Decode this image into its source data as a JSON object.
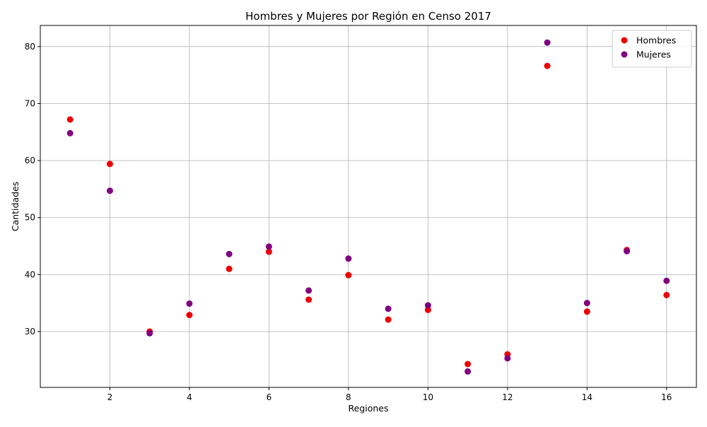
{
  "chart_data": {
    "type": "scatter",
    "title": "Hombres y Mujeres por Región en Censo 2017",
    "xlabel": "Regiones",
    "ylabel": "Cantidades",
    "xlim": [
      0.25,
      16.75
    ],
    "ylim": [
      20.2,
      83.7
    ],
    "x_ticks": [
      2,
      4,
      6,
      8,
      10,
      12,
      14,
      16
    ],
    "y_ticks": [
      30,
      40,
      50,
      60,
      70,
      80
    ],
    "grid": true,
    "legend_position": "top-right",
    "series": [
      {
        "name": "Hombres",
        "color": "#ee0000",
        "x": [
          1,
          2,
          3,
          4,
          5,
          6,
          7,
          8,
          9,
          10,
          11,
          12,
          13,
          14,
          15,
          16
        ],
        "y": [
          67.2,
          59.4,
          30.0,
          32.9,
          41.0,
          44.0,
          35.6,
          39.9,
          32.1,
          33.8,
          24.3,
          26.0,
          76.6,
          33.5,
          44.3,
          36.4
        ]
      },
      {
        "name": "Mujeres",
        "color": "#800080",
        "x": [
          1,
          2,
          3,
          4,
          5,
          6,
          7,
          8,
          9,
          10,
          11,
          12,
          13,
          14,
          15,
          16
        ],
        "y": [
          64.8,
          54.7,
          29.7,
          34.9,
          43.6,
          44.9,
          37.2,
          42.8,
          34.0,
          34.6,
          23.0,
          25.3,
          80.7,
          35.0,
          44.1,
          38.9
        ]
      }
    ]
  }
}
